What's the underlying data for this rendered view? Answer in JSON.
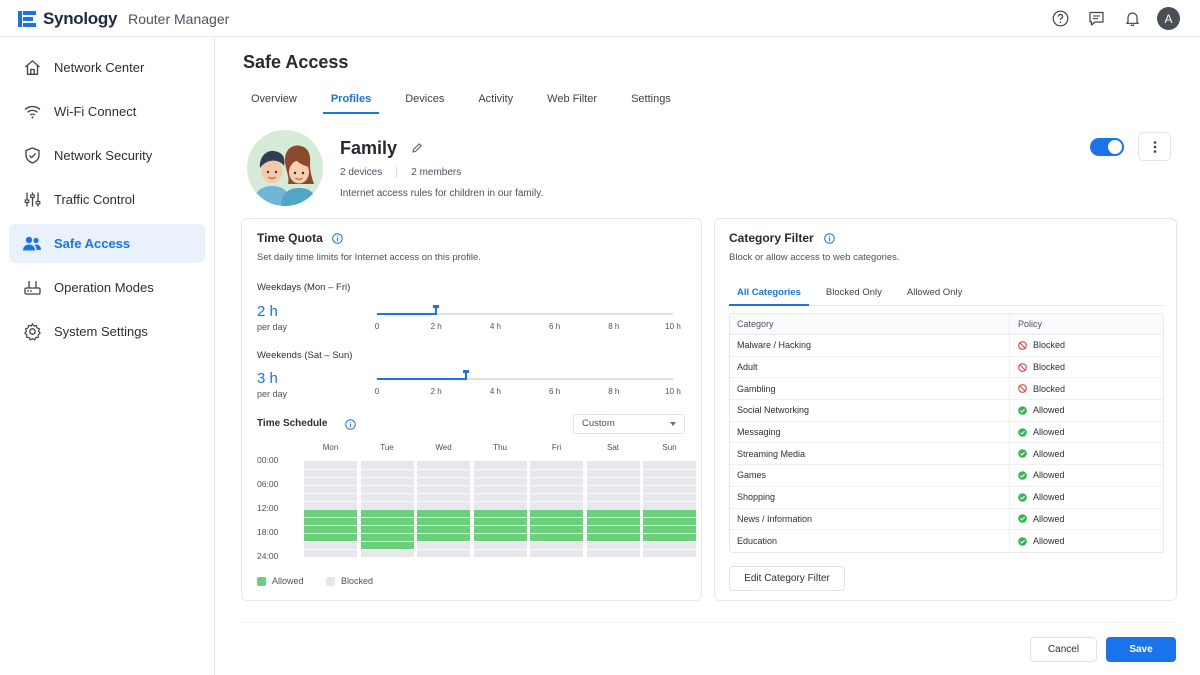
{
  "brand": {
    "name": "Synology",
    "app": "Router Manager"
  },
  "header": {
    "user_initial": "A"
  },
  "sidebar": {
    "items": [
      {
        "label": "Network Center",
        "icon": "home-icon"
      },
      {
        "label": "Wi-Fi Connect",
        "icon": "wifi-icon"
      },
      {
        "label": "Network Security",
        "icon": "shield-icon"
      },
      {
        "label": "Traffic Control",
        "icon": "sliders-icon"
      },
      {
        "label": "Safe Access",
        "icon": "people-icon",
        "active": true
      },
      {
        "label": "Operation Modes",
        "icon": "router-icon"
      },
      {
        "label": "System Settings",
        "icon": "gear-icon"
      }
    ]
  },
  "page": {
    "title": "Safe Access",
    "tabs": [
      "Overview",
      "Profiles",
      "Devices",
      "Activity",
      "Web Filter",
      "Settings"
    ],
    "active_tab": "Profiles"
  },
  "profile": {
    "name": "Family",
    "devices": "2 devices",
    "members": "2 members",
    "description": "Internet access rules for children in our family.",
    "enabled": true
  },
  "time_quota": {
    "title": "Time Quota",
    "subtitle": "Set daily time limits for Internet access on this profile.",
    "ticks": [
      "0",
      "2 h",
      "4 h",
      "6 h",
      "8 h",
      "10 h"
    ],
    "weekdays": {
      "label": "Weekdays (Mon – Fri)",
      "value": "2 h",
      "unit": "per day",
      "hours": 2
    },
    "weekends": {
      "label": "Weekends (Sat – Sun)",
      "value": "3 h",
      "unit": "per day",
      "hours": 3
    },
    "max_hours": 10
  },
  "schedule": {
    "title": "Time Schedule",
    "mode": "Custom",
    "days": [
      "Mon",
      "Tue",
      "Wed",
      "Thu",
      "Fri",
      "Sat",
      "Sun"
    ],
    "times": [
      "00:00",
      "06:00",
      "12:00",
      "18:00",
      "24:00"
    ],
    "allowed": [
      [
        12,
        20
      ],
      [
        12,
        22
      ],
      [
        12,
        20
      ],
      [
        12,
        20
      ],
      [
        12,
        20
      ],
      [
        12,
        20
      ],
      [
        12,
        20
      ]
    ],
    "legend": {
      "allowed": "Allowed",
      "blocked": "Blocked"
    }
  },
  "category_filter": {
    "title": "Category Filter",
    "subtitle": "Block or allow access to web categories.",
    "tabs": [
      "All Categories",
      "Blocked Only",
      "Allowed Only"
    ],
    "columns": [
      "Category",
      "Policy"
    ],
    "rows": [
      {
        "category": "Malware / Hacking",
        "policy": "Blocked"
      },
      {
        "category": "Adult",
        "policy": "Blocked"
      },
      {
        "category": "Gambling",
        "policy": "Blocked"
      },
      {
        "category": "Social Networking",
        "policy": "Allowed"
      },
      {
        "category": "Messaging",
        "policy": "Allowed"
      },
      {
        "category": "Streaming Media",
        "policy": "Allowed"
      },
      {
        "category": "Games",
        "policy": "Allowed"
      },
      {
        "category": "Shopping",
        "policy": "Allowed"
      },
      {
        "category": "News / Information",
        "policy": "Allowed"
      },
      {
        "category": "Education",
        "policy": "Allowed"
      }
    ],
    "edit_button": "Edit Category Filter"
  },
  "footer": {
    "cancel": "Cancel",
    "save": "Save"
  },
  "colors": {
    "accent": "#1a73e8",
    "allowed": "#6dcf7e",
    "blocked_cell": "#e7e8eb",
    "blocked_icon": "#e0443f",
    "allowed_icon": "#2eb84e"
  }
}
